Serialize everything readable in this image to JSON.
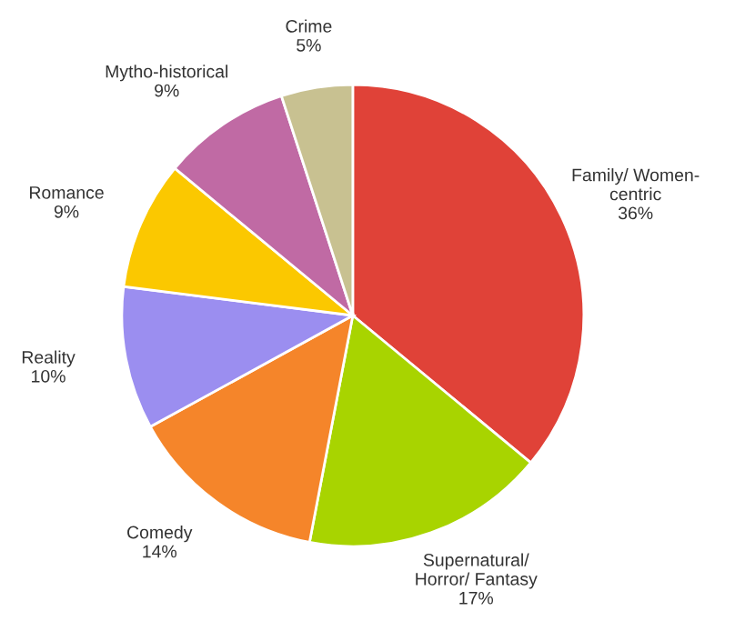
{
  "chart_data": {
    "type": "pie",
    "categories": [
      "Family/ Women-\ncentric",
      "Supernatural/\nHorror/ Fantasy",
      "Comedy",
      "Reality",
      "Romance",
      "Mytho-historical",
      "Crime"
    ],
    "values": [
      36,
      17,
      14,
      10,
      9,
      9,
      5
    ],
    "value_labels": [
      "36%",
      "17%",
      "14%",
      "10%",
      "9%",
      "9%",
      "5%"
    ],
    "colors": [
      "#e04238",
      "#a8d400",
      "#f5852a",
      "#9b8ef0",
      "#fbc800",
      "#c06aa4",
      "#c8c191"
    ],
    "legend": false
  }
}
